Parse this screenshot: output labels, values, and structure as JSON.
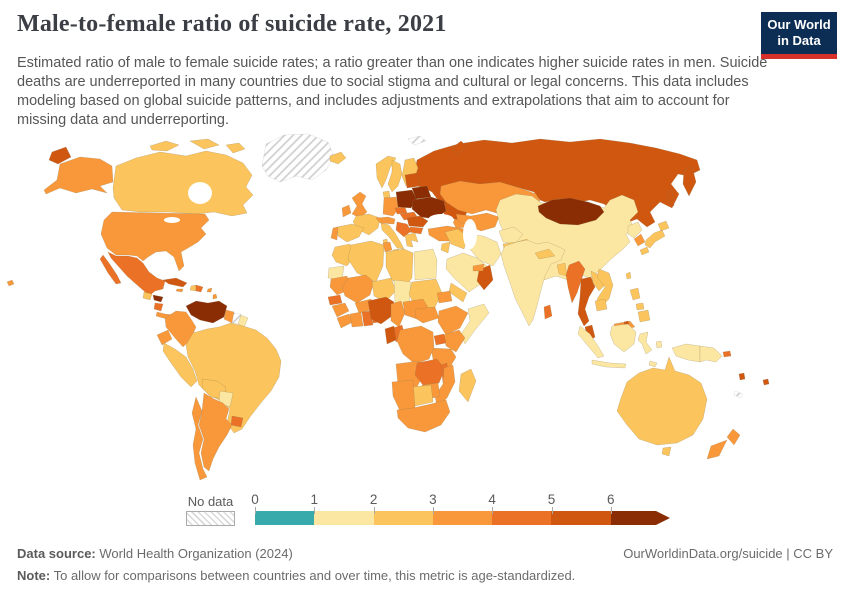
{
  "header": {
    "title": "Male-to-female ratio of suicide rate, 2021",
    "subtitle": "Estimated ratio of male to female suicide rates; a ratio greater than one indicates higher suicide rates in men. Suicide deaths are underreported in many countries due to social stigma and cultural or legal concerns. This data includes modeling based on global suicide patterns, and includes adjustments and extrapolations that aim to account for missing data and underreporting.",
    "logo": {
      "line1": "Our World",
      "line2": "in Data",
      "bg_color": "#0d2e54",
      "accent_color": "#d7322a"
    }
  },
  "legend": {
    "no_data_label": "No data",
    "ticks": [
      "0",
      "1",
      "2",
      "3",
      "4",
      "5",
      "6"
    ],
    "bins": [
      {
        "range": "0-1",
        "color": "#38aaab"
      },
      {
        "range": "1-2",
        "color": "#fce7a2"
      },
      {
        "range": "2-3",
        "color": "#fbc45c"
      },
      {
        "range": "3-4",
        "color": "#f8983a"
      },
      {
        "range": "4-5",
        "color": "#ea7125"
      },
      {
        "range": "5-6",
        "color": "#d05710"
      },
      {
        "range": "6+",
        "color": "#8b2d04"
      }
    ]
  },
  "footer": {
    "data_source_label": "Data source:",
    "data_source": "World Health Organization (2024)",
    "attribution": "OurWorldinData.org/suicide | CC BY",
    "note_label": "Note:",
    "note": "To allow for comparisons between countries and over time, this metric is age-standardized."
  },
  "chart_data": {
    "type": "choropleth",
    "title": "Male-to-female ratio of suicide rate",
    "year": 2021,
    "unit": "ratio of male to female suicide rate",
    "legend_ticks": [
      0,
      1,
      2,
      3,
      4,
      5,
      6
    ],
    "legend_note": "bin index refers to legend.bins; 'nodata' = hatched",
    "regions": [
      {
        "id": "greenland",
        "name": "Greenland",
        "bin": "nodata"
      },
      {
        "id": "svalbard",
        "name": "Svalbard",
        "bin": "nodata"
      },
      {
        "id": "suriname",
        "name": "Suriname",
        "bin": "nodata"
      },
      {
        "id": "new-caledonia",
        "name": "New Caledonia",
        "bin": "nodata"
      },
      {
        "id": "canada",
        "name": "Canada",
        "bin": 2
      },
      {
        "id": "united-states",
        "name": "United States",
        "bin": 3
      },
      {
        "id": "mexico",
        "name": "Mexico",
        "bin": 4
      },
      {
        "id": "guatemala",
        "name": "Guatemala",
        "bin": 2
      },
      {
        "id": "honduras",
        "name": "Honduras",
        "bin": 6
      },
      {
        "id": "nicaragua",
        "name": "Nicaragua",
        "bin": 4
      },
      {
        "id": "costa-rica-panama",
        "name": "Costa Rica & Panama",
        "bin": 3
      },
      {
        "id": "cuba",
        "name": "Cuba",
        "bin": 5
      },
      {
        "id": "jamaica",
        "name": "Jamaica",
        "bin": 3
      },
      {
        "id": "haiti",
        "name": "Haiti",
        "bin": 2
      },
      {
        "id": "dominican-republic",
        "name": "Dominican Republic",
        "bin": 4
      },
      {
        "id": "lesser-antilles",
        "name": "Lesser Antilles",
        "bin": 3
      },
      {
        "id": "venezuela",
        "name": "Venezuela",
        "bin": 6
      },
      {
        "id": "colombia",
        "name": "Colombia",
        "bin": 3
      },
      {
        "id": "guyana",
        "name": "Guyana",
        "bin": 3
      },
      {
        "id": "french-guiana",
        "name": "French Guiana",
        "bin": 1
      },
      {
        "id": "ecuador",
        "name": "Ecuador",
        "bin": 3
      },
      {
        "id": "peru",
        "name": "Peru",
        "bin": 2
      },
      {
        "id": "brazil",
        "name": "Brazil",
        "bin": 2
      },
      {
        "id": "bolivia",
        "name": "Bolivia",
        "bin": 2
      },
      {
        "id": "paraguay",
        "name": "Paraguay",
        "bin": 1
      },
      {
        "id": "uruguay",
        "name": "Uruguay",
        "bin": 4
      },
      {
        "id": "argentina",
        "name": "Argentina",
        "bin": 3
      },
      {
        "id": "chile",
        "name": "Chile",
        "bin": 3
      },
      {
        "id": "iceland",
        "name": "Iceland",
        "bin": 2
      },
      {
        "id": "united-kingdom",
        "name": "United Kingdom",
        "bin": 3
      },
      {
        "id": "ireland",
        "name": "Ireland",
        "bin": 3
      },
      {
        "id": "norway",
        "name": "Norway",
        "bin": 2
      },
      {
        "id": "sweden",
        "name": "Sweden",
        "bin": 2
      },
      {
        "id": "finland",
        "name": "Finland",
        "bin": 2
      },
      {
        "id": "denmark",
        "name": "Denmark",
        "bin": 2
      },
      {
        "id": "germany",
        "name": "Germany",
        "bin": 3
      },
      {
        "id": "france",
        "name": "France",
        "bin": 2
      },
      {
        "id": "spain",
        "name": "Spain",
        "bin": 2
      },
      {
        "id": "portugal",
        "name": "Portugal",
        "bin": 3
      },
      {
        "id": "italy",
        "name": "Italy",
        "bin": 2
      },
      {
        "id": "austria-switzerland",
        "name": "Austria & Switzerland",
        "bin": 3
      },
      {
        "id": "czechia",
        "name": "Czechia",
        "bin": 4
      },
      {
        "id": "poland",
        "name": "Poland",
        "bin": 6
      },
      {
        "id": "baltic-states",
        "name": "Baltic states",
        "bin": 5
      },
      {
        "id": "belarus",
        "name": "Belarus",
        "bin": 6
      },
      {
        "id": "ukraine",
        "name": "Ukraine",
        "bin": 6
      },
      {
        "id": "hungary-slovakia",
        "name": "Hungary & Slovakia",
        "bin": 4
      },
      {
        "id": "romania",
        "name": "Romania",
        "bin": 5
      },
      {
        "id": "balkans",
        "name": "Western Balkans",
        "bin": 4
      },
      {
        "id": "bulgaria",
        "name": "Bulgaria",
        "bin": 4
      },
      {
        "id": "greece",
        "name": "Greece",
        "bin": 2
      },
      {
        "id": "turkey",
        "name": "Turkey",
        "bin": 3
      },
      {
        "id": "caucasus",
        "name": "Caucasus",
        "bin": 3
      },
      {
        "id": "russia",
        "name": "Russia",
        "bin": 5
      },
      {
        "id": "kazakhstan",
        "name": "Kazakhstan",
        "bin": 3
      },
      {
        "id": "uzbekistan-turkmenistan",
        "name": "Uzbekistan & Turkmenistan",
        "bin": 3
      },
      {
        "id": "kyrgyzstan-tajikistan",
        "name": "Kyrgyzstan & Tajikistan",
        "bin": 2
      },
      {
        "id": "mongolia",
        "name": "Mongolia",
        "bin": 6
      },
      {
        "id": "china",
        "name": "China",
        "bin": 1
      },
      {
        "id": "north-korea",
        "name": "North Korea",
        "bin": 1
      },
      {
        "id": "south-korea",
        "name": "South Korea",
        "bin": 3
      },
      {
        "id": "japan",
        "name": "Japan",
        "bin": 2
      },
      {
        "id": "taiwan",
        "name": "Taiwan",
        "bin": 2
      },
      {
        "id": "iraq-syria",
        "name": "Iraq & Syria",
        "bin": 2
      },
      {
        "id": "jordan-israel",
        "name": "Jordan & Israel",
        "bin": 2
      },
      {
        "id": "iran",
        "name": "Iran",
        "bin": 1
      },
      {
        "id": "afghanistan",
        "name": "Afghanistan",
        "bin": 1
      },
      {
        "id": "pakistan",
        "name": "Pakistan",
        "bin": 2
      },
      {
        "id": "saudi-arabia",
        "name": "Saudi Arabia",
        "bin": 1
      },
      {
        "id": "yemen",
        "name": "Yemen",
        "bin": 2
      },
      {
        "id": "oman",
        "name": "Oman",
        "bin": 5
      },
      {
        "id": "uae-qatar",
        "name": "UAE & Qatar",
        "bin": 3
      },
      {
        "id": "india",
        "name": "India",
        "bin": 1
      },
      {
        "id": "nepal",
        "name": "Nepal",
        "bin": 2
      },
      {
        "id": "bangladesh",
        "name": "Bangladesh",
        "bin": 2
      },
      {
        "id": "sri-lanka",
        "name": "Sri Lanka",
        "bin": 4
      },
      {
        "id": "myanmar",
        "name": "Myanmar",
        "bin": 4
      },
      {
        "id": "thailand",
        "name": "Thailand",
        "bin": 5
      },
      {
        "id": "laos",
        "name": "Laos",
        "bin": 2
      },
      {
        "id": "vietnam",
        "name": "Vietnam",
        "bin": 2
      },
      {
        "id": "cambodia",
        "name": "Cambodia",
        "bin": 2
      },
      {
        "id": "malaysia",
        "name": "Malaysia (peninsular)",
        "bin": 5
      },
      {
        "id": "east-malaysia",
        "name": "Malaysia (Borneo)",
        "bin": 3
      },
      {
        "id": "brunei",
        "name": "Brunei",
        "bin": 5
      },
      {
        "id": "indonesia",
        "name": "Indonesia",
        "bin": 1
      },
      {
        "id": "timor",
        "name": "Timor-Leste",
        "bin": 1
      },
      {
        "id": "philippines",
        "name": "Philippines",
        "bin": 2
      },
      {
        "id": "papua-new-guinea",
        "name": "Papua New Guinea",
        "bin": 1
      },
      {
        "id": "australia",
        "name": "Australia",
        "bin": 2
      },
      {
        "id": "new-zealand",
        "name": "New Zealand",
        "bin": 3
      },
      {
        "id": "solomon-islands",
        "name": "Solomon Islands",
        "bin": 4
      },
      {
        "id": "vanuatu",
        "name": "Vanuatu",
        "bin": 5
      },
      {
        "id": "fiji",
        "name": "Fiji",
        "bin": 5
      },
      {
        "id": "morocco",
        "name": "Morocco",
        "bin": 2
      },
      {
        "id": "western-sahara",
        "name": "Western Sahara",
        "bin": 1
      },
      {
        "id": "algeria",
        "name": "Algeria",
        "bin": 2
      },
      {
        "id": "tunisia",
        "name": "Tunisia",
        "bin": 3
      },
      {
        "id": "libya",
        "name": "Libya",
        "bin": 2
      },
      {
        "id": "egypt",
        "name": "Egypt",
        "bin": 1
      },
      {
        "id": "mauritania",
        "name": "Mauritania",
        "bin": 3
      },
      {
        "id": "mali",
        "name": "Mali",
        "bin": 3
      },
      {
        "id": "niger",
        "name": "Niger",
        "bin": 2
      },
      {
        "id": "chad",
        "name": "Chad",
        "bin": 1
      },
      {
        "id": "sudan",
        "name": "Sudan",
        "bin": 2
      },
      {
        "id": "senegal",
        "name": "Senegal",
        "bin": 4
      },
      {
        "id": "guinea",
        "name": "Guinea",
        "bin": 3
      },
      {
        "id": "sierra-leone-liberia",
        "name": "Sierra Leone & Liberia",
        "bin": 3
      },
      {
        "id": "cote-divoire",
        "name": "Cote d'Ivoire",
        "bin": 3
      },
      {
        "id": "burkina-faso",
        "name": "Burkina Faso",
        "bin": 3
      },
      {
        "id": "ghana",
        "name": "Ghana",
        "bin": 4
      },
      {
        "id": "togo-benin",
        "name": "Togo & Benin",
        "bin": 4
      },
      {
        "id": "nigeria",
        "name": "Nigeria",
        "bin": 5
      },
      {
        "id": "cameroon",
        "name": "Cameroon",
        "bin": 3
      },
      {
        "id": "central-african-republic",
        "name": "Central African Republic",
        "bin": 3
      },
      {
        "id": "south-sudan",
        "name": "South Sudan",
        "bin": 3
      },
      {
        "id": "eritrea",
        "name": "Eritrea",
        "bin": 3
      },
      {
        "id": "ethiopia",
        "name": "Ethiopia",
        "bin": 3
      },
      {
        "id": "somalia",
        "name": "Somalia",
        "bin": 1
      },
      {
        "id": "kenya",
        "name": "Kenya",
        "bin": 3
      },
      {
        "id": "uganda",
        "name": "Uganda",
        "bin": 4
      },
      {
        "id": "tanzania",
        "name": "Tanzania",
        "bin": 3
      },
      {
        "id": "dr-congo",
        "name": "Democratic Republic of Congo",
        "bin": 3
      },
      {
        "id": "congo",
        "name": "Congo",
        "bin": 4
      },
      {
        "id": "gabon",
        "name": "Gabon",
        "bin": 5
      },
      {
        "id": "angola",
        "name": "Angola",
        "bin": 3
      },
      {
        "id": "zambia",
        "name": "Zambia",
        "bin": 4
      },
      {
        "id": "malawi",
        "name": "Malawi",
        "bin": 4
      },
      {
        "id": "mozambique",
        "name": "Mozambique",
        "bin": 3
      },
      {
        "id": "zimbabwe",
        "name": "Zimbabwe",
        "bin": 3
      },
      {
        "id": "botswana",
        "name": "Botswana",
        "bin": 2
      },
      {
        "id": "namibia",
        "name": "Namibia",
        "bin": 3
      },
      {
        "id": "south-africa",
        "name": "South Africa",
        "bin": 3
      },
      {
        "id": "madagascar",
        "name": "Madagascar",
        "bin": 2
      }
    ]
  }
}
